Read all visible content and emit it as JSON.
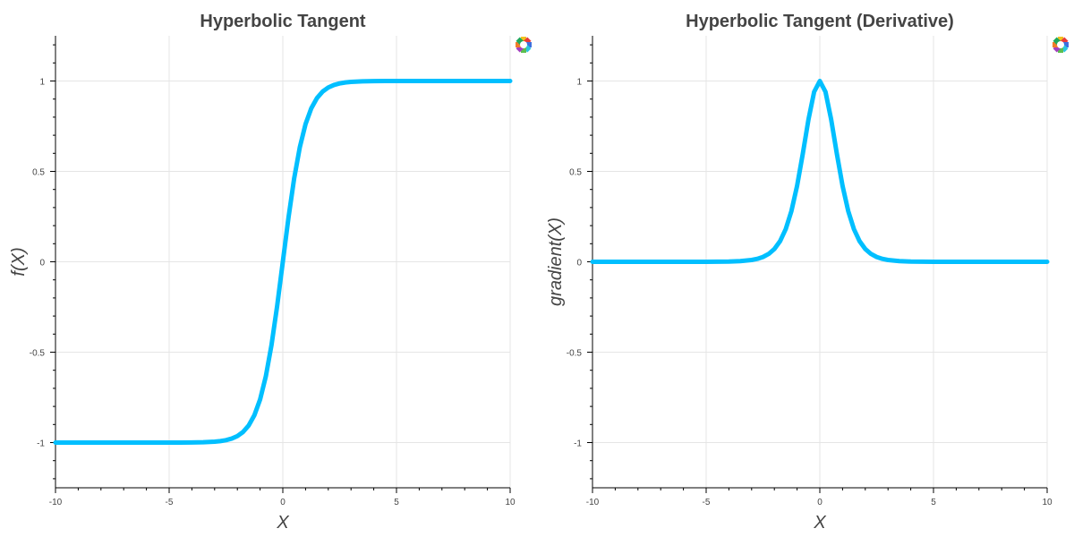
{
  "logo": {
    "icon": "bokeh-logo-icon"
  },
  "chart_data": [
    {
      "type": "line",
      "title": "Hyperbolic Tangent",
      "xlabel": "X",
      "ylabel": "f(X)",
      "xlim": [
        -10,
        10
      ],
      "ylim": [
        -1.25,
        1.25
      ],
      "x_ticks": [
        -10,
        -5,
        0,
        5,
        10
      ],
      "x_tick_labels": [
        "-10",
        "-5",
        "0",
        "5",
        "10"
      ],
      "y_ticks": [
        -1,
        -0.5,
        0,
        0.5,
        1
      ],
      "y_tick_labels": [
        "-1",
        "-0.5",
        "0",
        "0.5",
        "1"
      ],
      "grid": true,
      "series": [
        {
          "color": "#00BFFF",
          "x": [
            -10,
            -9,
            -8,
            -7,
            -6,
            -5,
            -4.5,
            -4,
            -3.5,
            -3,
            -2.75,
            -2.5,
            -2.25,
            -2,
            -1.75,
            -1.5,
            -1.25,
            -1,
            -0.75,
            -0.5,
            -0.25,
            0,
            0.25,
            0.5,
            0.75,
            1,
            1.25,
            1.5,
            1.75,
            2,
            2.25,
            2.5,
            2.75,
            3,
            3.5,
            4,
            4.5,
            5,
            6,
            7,
            8,
            9,
            10
          ],
          "y": [
            -1,
            -1,
            -1,
            -1,
            -1,
            -0.9999,
            -0.9998,
            -0.9993,
            -0.9982,
            -0.9951,
            -0.9919,
            -0.9866,
            -0.978,
            -0.964,
            -0.9414,
            -0.9051,
            -0.8483,
            -0.7616,
            -0.6351,
            -0.4621,
            -0.2449,
            0,
            0.2449,
            0.4621,
            0.6351,
            0.7616,
            0.8483,
            0.9051,
            0.9414,
            0.964,
            0.978,
            0.9866,
            0.9919,
            0.9951,
            0.9982,
            0.9993,
            0.9998,
            0.9999,
            1,
            1,
            1,
            1,
            1
          ]
        }
      ]
    },
    {
      "type": "line",
      "title": "Hyperbolic Tangent (Derivative)",
      "xlabel": "X",
      "ylabel": "gradient(X)",
      "xlim": [
        -10,
        10
      ],
      "ylim": [
        -1.25,
        1.25
      ],
      "x_ticks": [
        -10,
        -5,
        0,
        5,
        10
      ],
      "x_tick_labels": [
        "-10",
        "-5",
        "0",
        "5",
        "10"
      ],
      "y_ticks": [
        -1,
        -0.5,
        0,
        0.5,
        1
      ],
      "y_tick_labels": [
        "-1",
        "-0.5",
        "0",
        "0.5",
        "1"
      ],
      "grid": true,
      "series": [
        {
          "color": "#00BFFF",
          "x": [
            -10,
            -9,
            -8,
            -7,
            -6,
            -5,
            -4.5,
            -4,
            -3.5,
            -3,
            -2.75,
            -2.5,
            -2.25,
            -2,
            -1.75,
            -1.5,
            -1.25,
            -1,
            -0.75,
            -0.5,
            -0.25,
            0,
            0.25,
            0.5,
            0.75,
            1,
            1.25,
            1.5,
            1.75,
            2,
            2.25,
            2.5,
            2.75,
            3,
            3.5,
            4,
            4.5,
            5,
            6,
            7,
            8,
            9,
            10
          ],
          "y": [
            0,
            0,
            0,
            0,
            0,
            0.0002,
            0.0005,
            0.0013,
            0.0036,
            0.0099,
            0.0162,
            0.0266,
            0.0435,
            0.0707,
            0.1137,
            0.1807,
            0.2805,
            0.42,
            0.5967,
            0.7864,
            0.94,
            1,
            0.94,
            0.7864,
            0.5967,
            0.42,
            0.2805,
            0.1807,
            0.1137,
            0.0707,
            0.0435,
            0.0266,
            0.0162,
            0.0099,
            0.0036,
            0.0013,
            0.0005,
            0.0002,
            0,
            0,
            0,
            0,
            0
          ]
        }
      ]
    }
  ]
}
